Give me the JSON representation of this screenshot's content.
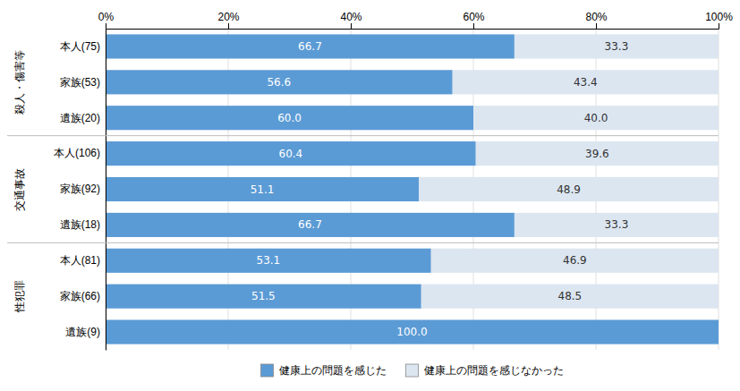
{
  "chart_data": {
    "type": "bar",
    "orientation": "horizontal",
    "stacked": true,
    "categories": [
      "本人(75)",
      "家族(53)",
      "遺族(20)",
      "本人(106)",
      "家族(92)",
      "遺族(18)",
      "本人(81)",
      "家族(66)",
      "遺族(9)"
    ],
    "series": [
      {
        "name": "健康上の問題を感じた",
        "color": "#5B9BD5",
        "values": [
          66.7,
          56.6,
          60.0,
          60.4,
          51.1,
          66.7,
          53.1,
          51.5,
          100.0
        ],
        "value_labels": [
          "66.7",
          "56.6",
          "60.0",
          "60.4",
          "51.1",
          "66.7",
          "53.1",
          "51.5",
          "100.0"
        ]
      },
      {
        "name": "健康上の問題を感じなかった",
        "color": "#dce6f1",
        "values": [
          33.3,
          43.4,
          40.0,
          39.6,
          48.9,
          33.3,
          46.9,
          48.5,
          0.0
        ],
        "value_labels": [
          "33.3",
          "43.4",
          "40.0",
          "39.6",
          "48.9",
          "33.3",
          "46.9",
          "48.5",
          null
        ]
      }
    ],
    "annotations": [
      "殺人・傷害等",
      "交通事故",
      "性犯罪"
    ],
    "xlim": [
      0,
      100
    ],
    "xticks": [
      {
        "value": 0,
        "label": "0%"
      },
      {
        "value": 20,
        "label": "20%"
      },
      {
        "value": 40,
        "label": "40%"
      },
      {
        "value": 60,
        "label": "60%"
      },
      {
        "value": 80,
        "label": "80%"
      },
      {
        "value": 100,
        "label": "100%"
      }
    ],
    "grid": true,
    "data_labels": true
  }
}
